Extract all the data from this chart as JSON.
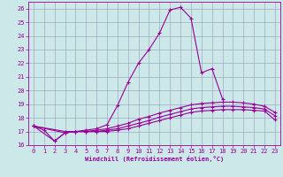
{
  "xlabel": "Windchill (Refroidissement éolien,°C)",
  "bg_color": "#cce8e8",
  "grid_color": "#9999bb",
  "line_color": "#990099",
  "xlim": [
    -0.5,
    23.5
  ],
  "ylim": [
    16,
    26.5
  ],
  "xticks": [
    0,
    1,
    2,
    3,
    4,
    5,
    6,
    7,
    8,
    9,
    10,
    11,
    12,
    13,
    14,
    15,
    16,
    17,
    18,
    19,
    20,
    21,
    22,
    23
  ],
  "yticks": [
    16,
    17,
    18,
    19,
    20,
    21,
    22,
    23,
    24,
    25,
    26
  ],
  "series": [
    {
      "x": [
        0,
        1,
        2,
        3,
        4,
        5,
        6,
        7,
        8,
        9,
        10,
        11,
        12,
        13,
        14,
        15,
        16,
        17,
        18
      ],
      "y": [
        17.4,
        17.1,
        16.3,
        16.9,
        17.0,
        17.1,
        17.2,
        17.5,
        18.9,
        20.6,
        22.0,
        23.0,
        24.2,
        25.9,
        26.1,
        25.3,
        21.3,
        21.6,
        19.4
      ]
    },
    {
      "x": [
        0,
        3,
        4,
        5,
        6,
        7,
        8,
        9,
        10,
        11,
        12,
        13,
        14,
        15,
        16,
        17,
        18,
        19,
        20,
        21,
        22,
        23
      ],
      "y": [
        17.4,
        17.0,
        17.0,
        17.0,
        17.1,
        17.2,
        17.4,
        17.6,
        17.9,
        18.1,
        18.35,
        18.55,
        18.75,
        18.95,
        19.05,
        19.1,
        19.15,
        19.15,
        19.1,
        19.0,
        18.85,
        18.4
      ]
    },
    {
      "x": [
        0,
        3,
        4,
        5,
        6,
        7,
        8,
        9,
        10,
        11,
        12,
        13,
        14,
        15,
        16,
        17,
        18,
        19,
        20,
        21,
        22,
        23
      ],
      "y": [
        17.4,
        16.9,
        17.0,
        17.0,
        17.0,
        17.1,
        17.2,
        17.4,
        17.6,
        17.8,
        18.05,
        18.25,
        18.45,
        18.65,
        18.75,
        18.8,
        18.85,
        18.85,
        18.8,
        18.75,
        18.65,
        18.15
      ]
    },
    {
      "x": [
        0,
        2,
        3,
        4,
        5,
        6,
        7,
        8,
        9,
        10,
        11,
        12,
        13,
        14,
        15,
        16,
        17,
        18,
        19,
        20,
        21,
        22,
        23
      ],
      "y": [
        17.4,
        16.3,
        16.9,
        17.0,
        17.0,
        17.0,
        17.0,
        17.1,
        17.2,
        17.4,
        17.6,
        17.8,
        18.0,
        18.2,
        18.4,
        18.5,
        18.55,
        18.6,
        18.6,
        18.6,
        18.55,
        18.5,
        17.85
      ]
    }
  ]
}
